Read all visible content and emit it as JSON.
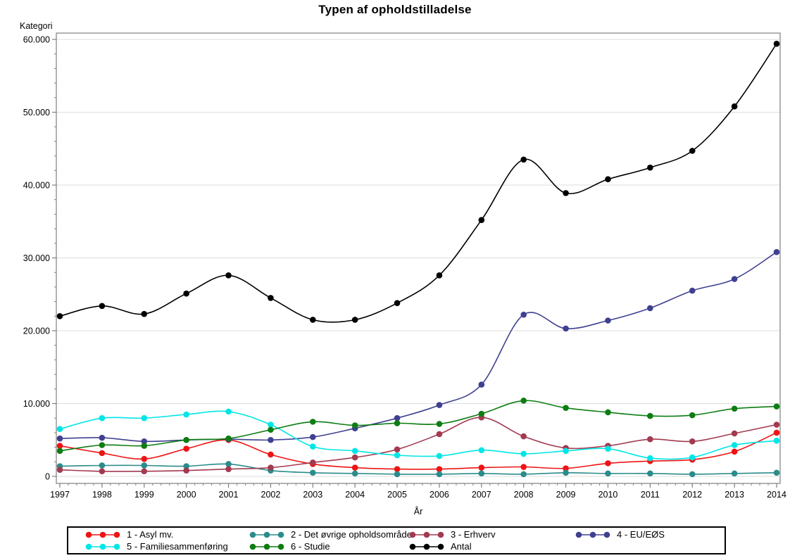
{
  "title": "Typen af opholdstilladelse",
  "y_axis": {
    "label": "Kategori"
  },
  "x_axis": {
    "label": "År"
  },
  "chart_data": {
    "type": "line",
    "title": "Typen af opholdstilladelse",
    "xlabel": "År",
    "ylabel": "Kategori",
    "x": [
      1997,
      1998,
      1999,
      2000,
      2001,
      2002,
      2003,
      2004,
      2005,
      2006,
      2007,
      2008,
      2009,
      2010,
      2011,
      2012,
      2013,
      2014
    ],
    "x_tick_labels": [
      "1997",
      "1998",
      "1999",
      "2000",
      "2001",
      "2002",
      "2003",
      "2004",
      "2005",
      "2006",
      "2007",
      "2008",
      "2009",
      "2010",
      "2011",
      "2012",
      "2013",
      "2014"
    ],
    "ylim": [
      0,
      60000
    ],
    "y_tick_values": [
      0,
      10000,
      20000,
      30000,
      40000,
      50000,
      60000
    ],
    "y_tick_labels": [
      "0",
      "10.000",
      "20.000",
      "30.000",
      "40.000",
      "50.000",
      "60.000"
    ],
    "y_minor_step": 2000,
    "x_minor_per_interval": 4,
    "grid": true,
    "smooth": true,
    "marker": "circle",
    "legend_position": "bottom",
    "legend_rows": [
      [
        0,
        1,
        2,
        3
      ],
      [
        4,
        5,
        6
      ]
    ],
    "series": [
      {
        "name": "1 - Asyl mv.",
        "color": "#ee1414",
        "values": [
          4200,
          3200,
          2400,
          3800,
          5000,
          3000,
          1700,
          1200,
          1000,
          1000,
          1200,
          1300,
          1100,
          1800,
          2100,
          2300,
          3400,
          6000
        ]
      },
      {
        "name": "2 - Det øvrige opholdsområde",
        "color": "#2b8c8c",
        "values": [
          1400,
          1500,
          1500,
          1400,
          1700,
          800,
          500,
          400,
          300,
          300,
          400,
          300,
          500,
          400,
          400,
          300,
          400,
          500
        ]
      },
      {
        "name": "3 - Erhverv",
        "color": "#a23a50",
        "values": [
          900,
          700,
          700,
          800,
          1000,
          1200,
          1900,
          2600,
          3700,
          5800,
          8100,
          5500,
          3900,
          4200,
          5100,
          4800,
          5900,
          7100
        ]
      },
      {
        "name": "4 - EU/EØS",
        "color": "#3f4090",
        "values": [
          5200,
          5300,
          4800,
          5000,
          5100,
          5000,
          5400,
          6600,
          8000,
          9800,
          12600,
          22200,
          20300,
          21400,
          23100,
          25500,
          27100,
          30800
        ]
      },
      {
        "name": "5 - Familiesammenføring",
        "color": "#00e6e6",
        "values": [
          6500,
          8000,
          8000,
          8500,
          8900,
          7100,
          4100,
          3500,
          2900,
          2800,
          3600,
          3100,
          3500,
          3800,
          2500,
          2600,
          4300,
          4900
        ]
      },
      {
        "name": "6 - Studie",
        "color": "#0d7d12",
        "values": [
          3500,
          4300,
          4200,
          5000,
          5200,
          6400,
          7500,
          7000,
          7300,
          7200,
          8600,
          10400,
          9400,
          8800,
          8300,
          8400,
          9300,
          9600
        ]
      },
      {
        "name": "Antal",
        "color": "#000000",
        "values": [
          22000,
          23400,
          22300,
          25100,
          27600,
          24500,
          21500,
          21500,
          23800,
          27600,
          35200,
          43500,
          38900,
          40800,
          42400,
          44700,
          50800,
          59400
        ]
      }
    ],
    "axis_color": "#7f7f7f",
    "grid_color": "#dddddd"
  }
}
